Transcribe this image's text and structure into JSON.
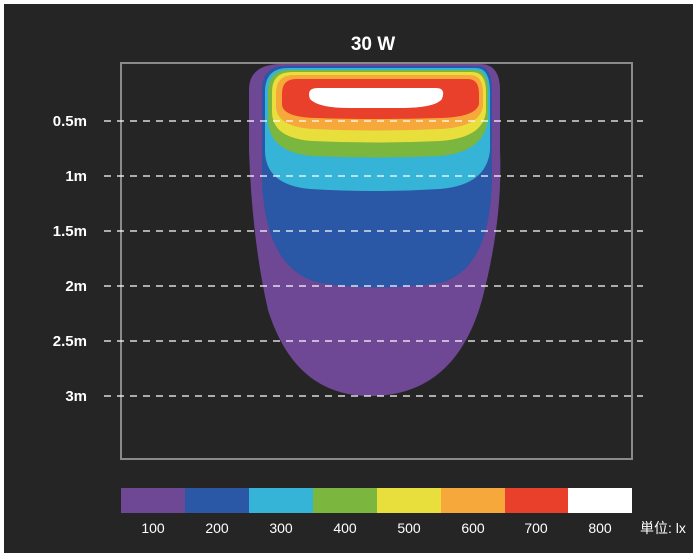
{
  "chart_data": {
    "type": "heatmap",
    "title": "30 W",
    "y_ticks": [
      "0.5m",
      "1m",
      "1.5m",
      "2m",
      "2.5m",
      "3m"
    ],
    "y_values": [
      0.5,
      1,
      1.5,
      2,
      2.5,
      3
    ],
    "grid": true,
    "unit_label": "単位: lx",
    "legend": [
      {
        "value": "100",
        "color": "#6e4894"
      },
      {
        "value": "200",
        "color": "#2a57a6"
      },
      {
        "value": "300",
        "color": "#36b4d8"
      },
      {
        "value": "400",
        "color": "#7bb63e"
      },
      {
        "value": "500",
        "color": "#e8df3c"
      },
      {
        "value": "600",
        "color": "#f6a83a"
      },
      {
        "value": "700",
        "color": "#e8402a"
      },
      {
        "value": "800",
        "color": "#ffffff"
      }
    ],
    "contours": [
      {
        "level": 100,
        "color": "#6e4894",
        "max_distance_m": 3.0
      },
      {
        "level": 200,
        "color": "#2a57a6",
        "max_distance_m": 2.0
      },
      {
        "level": 300,
        "color": "#36b4d8",
        "max_distance_m": 1.2
      },
      {
        "level": 400,
        "color": "#7bb63e",
        "max_distance_m": 0.95
      },
      {
        "level": 500,
        "color": "#e8df3c",
        "max_distance_m": 0.85
      },
      {
        "level": 600,
        "color": "#f6a83a",
        "max_distance_m": 0.8
      },
      {
        "level": 700,
        "color": "#e8402a",
        "max_distance_m": 0.6
      },
      {
        "level": 800,
        "color": "#ffffff",
        "max_distance_m": 0.4
      }
    ]
  }
}
